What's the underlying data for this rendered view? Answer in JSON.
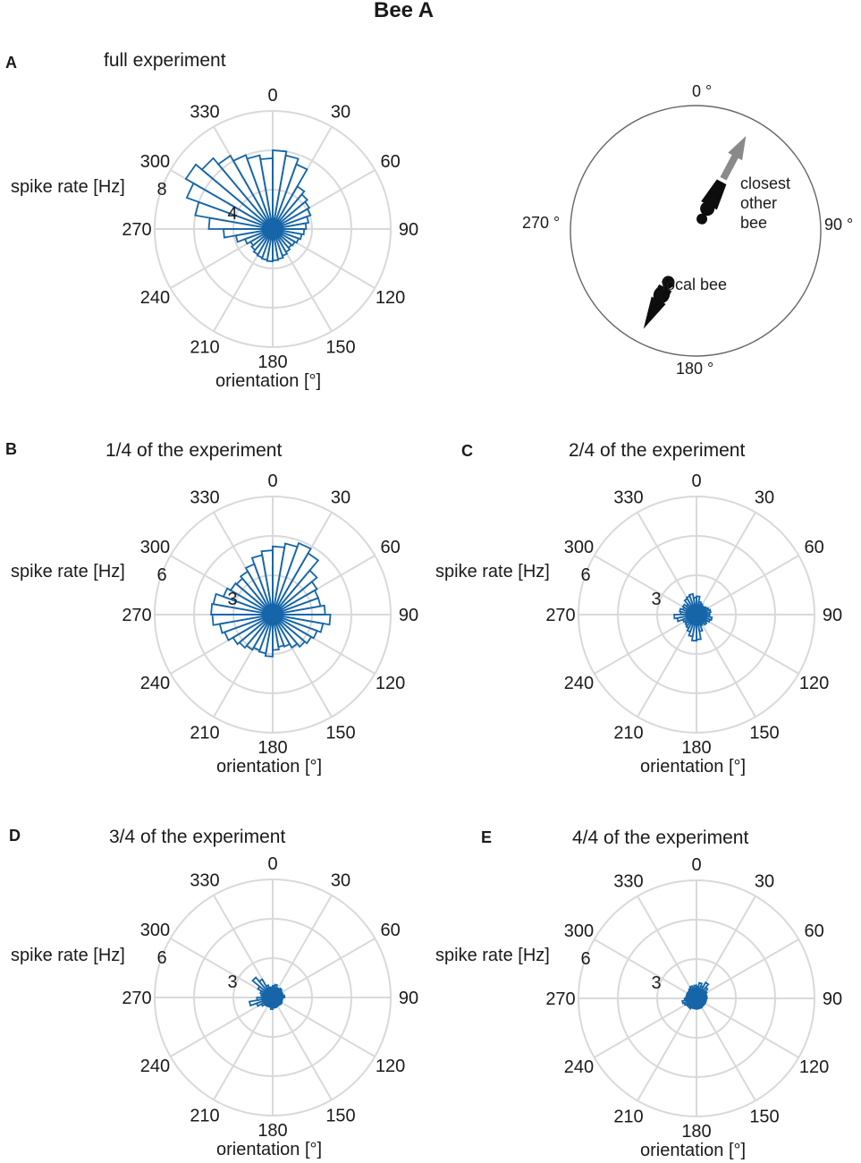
{
  "figure_title": "Bee A",
  "colors": {
    "bar": "#1565a8",
    "grid": "#d9d9d9",
    "text": "#1a1a1a",
    "arrow": "#8a8a8a",
    "bee": "#0d0d0d",
    "circle": "#666666"
  },
  "schematic": {
    "angle_labels": [
      "0 °",
      "90 °",
      "180 °",
      "270 °"
    ],
    "closest_bee_label": [
      "closest",
      "other",
      "bee"
    ],
    "focal_bee_label": "focal bee",
    "heading_deg": 28
  },
  "chart_data": [
    {
      "panel": "A",
      "type": "polar-histogram",
      "title": "full experiment",
      "theta_ticks": [
        "0",
        "30",
        "60",
        "90",
        "120",
        "150",
        "180",
        "210",
        "240",
        "270",
        "300",
        "330"
      ],
      "rlim": [
        0,
        12
      ],
      "r_ticks": [
        4,
        8
      ],
      "r_tick_labels": [
        "4",
        "8"
      ],
      "ylabel": "spike rate [Hz]",
      "xlabel": "orientation [°]",
      "bin_width_deg": 10,
      "values": [
        8.0,
        7.6,
        7.0,
        5.0,
        4.6,
        4.3,
        4.1,
        3.7,
        3.4,
        3.2,
        3.0,
        2.8,
        2.6,
        2.5,
        2.7,
        2.9,
        3.1,
        3.2,
        3.3,
        3.2,
        3.1,
        3.0,
        2.8,
        2.6,
        3.0,
        3.8,
        5.0,
        6.5,
        8.0,
        9.3,
        10.2,
        9.4,
        8.6,
        8.0,
        7.6,
        7.2
      ]
    },
    {
      "panel": "B",
      "type": "polar-histogram",
      "title": "1/4 of the experiment",
      "theta_ticks": [
        "0",
        "30",
        "60",
        "90",
        "120",
        "150",
        "180",
        "210",
        "240",
        "270",
        "300",
        "330"
      ],
      "rlim": [
        0,
        9
      ],
      "r_ticks": [
        3,
        6
      ],
      "r_tick_labels": [
        "3",
        "6"
      ],
      "ylabel": "spike rate [Hz]",
      "xlabel": "orientation [°]",
      "bin_width_deg": 10,
      "values": [
        5.2,
        5.5,
        5.8,
        5.4,
        4.4,
        3.9,
        3.7,
        3.7,
        4.0,
        4.4,
        3.9,
        3.6,
        3.4,
        3.2,
        2.9,
        2.6,
        2.5,
        2.7,
        3.2,
        3.0,
        2.9,
        3.1,
        3.3,
        3.5,
        3.9,
        4.1,
        4.6,
        4.7,
        4.6,
        4.0,
        3.7,
        3.6,
        3.8,
        4.1,
        4.6,
        4.9
      ]
    },
    {
      "panel": "C",
      "type": "polar-histogram",
      "title": "2/4 of the experiment",
      "theta_ticks": [
        "0",
        "30",
        "60",
        "90",
        "120",
        "150",
        "180",
        "210",
        "240",
        "270",
        "300",
        "330"
      ],
      "rlim": [
        0,
        9
      ],
      "r_ticks": [
        3,
        6
      ],
      "r_tick_labels": [
        "3",
        "6"
      ],
      "ylabel": "spike rate [Hz]",
      "xlabel": "orientation [°]",
      "bin_width_deg": 10,
      "values": [
        1.4,
        1.0,
        0.9,
        0.8,
        0.8,
        0.9,
        1.0,
        1.1,
        1.0,
        1.0,
        1.2,
        1.1,
        0.9,
        1.0,
        0.8,
        0.9,
        1.3,
        1.9,
        2.0,
        1.7,
        1.4,
        1.2,
        1.1,
        1.0,
        1.1,
        1.5,
        1.7,
        1.2,
        1.3,
        1.1,
        1.2,
        1.0,
        1.4,
        1.5,
        1.6,
        1.3
      ]
    },
    {
      "panel": "D",
      "type": "polar-histogram",
      "title": "3/4 of the experiment",
      "theta_ticks": [
        "0",
        "30",
        "60",
        "90",
        "120",
        "150",
        "180",
        "210",
        "240",
        "270",
        "300",
        "330"
      ],
      "rlim": [
        0,
        9
      ],
      "r_ticks": [
        3,
        6
      ],
      "r_tick_labels": [
        "3",
        "6"
      ],
      "ylabel": "spike rate [Hz]",
      "xlabel": "orientation [°]",
      "bin_width_deg": 10,
      "values": [
        0.9,
        1.0,
        0.8,
        0.8,
        0.9,
        0.7,
        0.8,
        0.8,
        0.9,
        0.7,
        0.6,
        0.7,
        0.8,
        0.7,
        0.6,
        0.6,
        0.8,
        0.7,
        0.9,
        0.7,
        0.6,
        0.7,
        0.8,
        1.0,
        1.3,
        1.8,
        1.2,
        0.8,
        0.9,
        1.0,
        1.3,
        2.0,
        1.6,
        1.0,
        0.8,
        0.7
      ]
    },
    {
      "panel": "E",
      "type": "polar-histogram",
      "title": "4/4 of the experiment",
      "theta_ticks": [
        "0",
        "30",
        "60",
        "90",
        "120",
        "150",
        "180",
        "210",
        "240",
        "270",
        "300",
        "330"
      ],
      "rlim": [
        0,
        9
      ],
      "r_ticks": [
        3,
        6
      ],
      "r_tick_labels": [
        "3",
        "6"
      ],
      "ylabel": "spike rate [Hz]",
      "xlabel": "orientation [°]",
      "bin_width_deg": 10,
      "values": [
        0.9,
        1.2,
        1.0,
        1.4,
        1.1,
        0.9,
        0.8,
        0.7,
        0.8,
        0.7,
        0.6,
        0.7,
        0.7,
        0.6,
        0.7,
        0.8,
        0.7,
        0.8,
        0.7,
        0.8,
        0.7,
        0.9,
        0.8,
        0.9,
        1.0,
        1.1,
        0.9,
        0.8,
        0.7,
        0.8,
        0.7,
        0.8,
        0.9,
        1.0,
        0.9,
        1.0
      ]
    }
  ]
}
